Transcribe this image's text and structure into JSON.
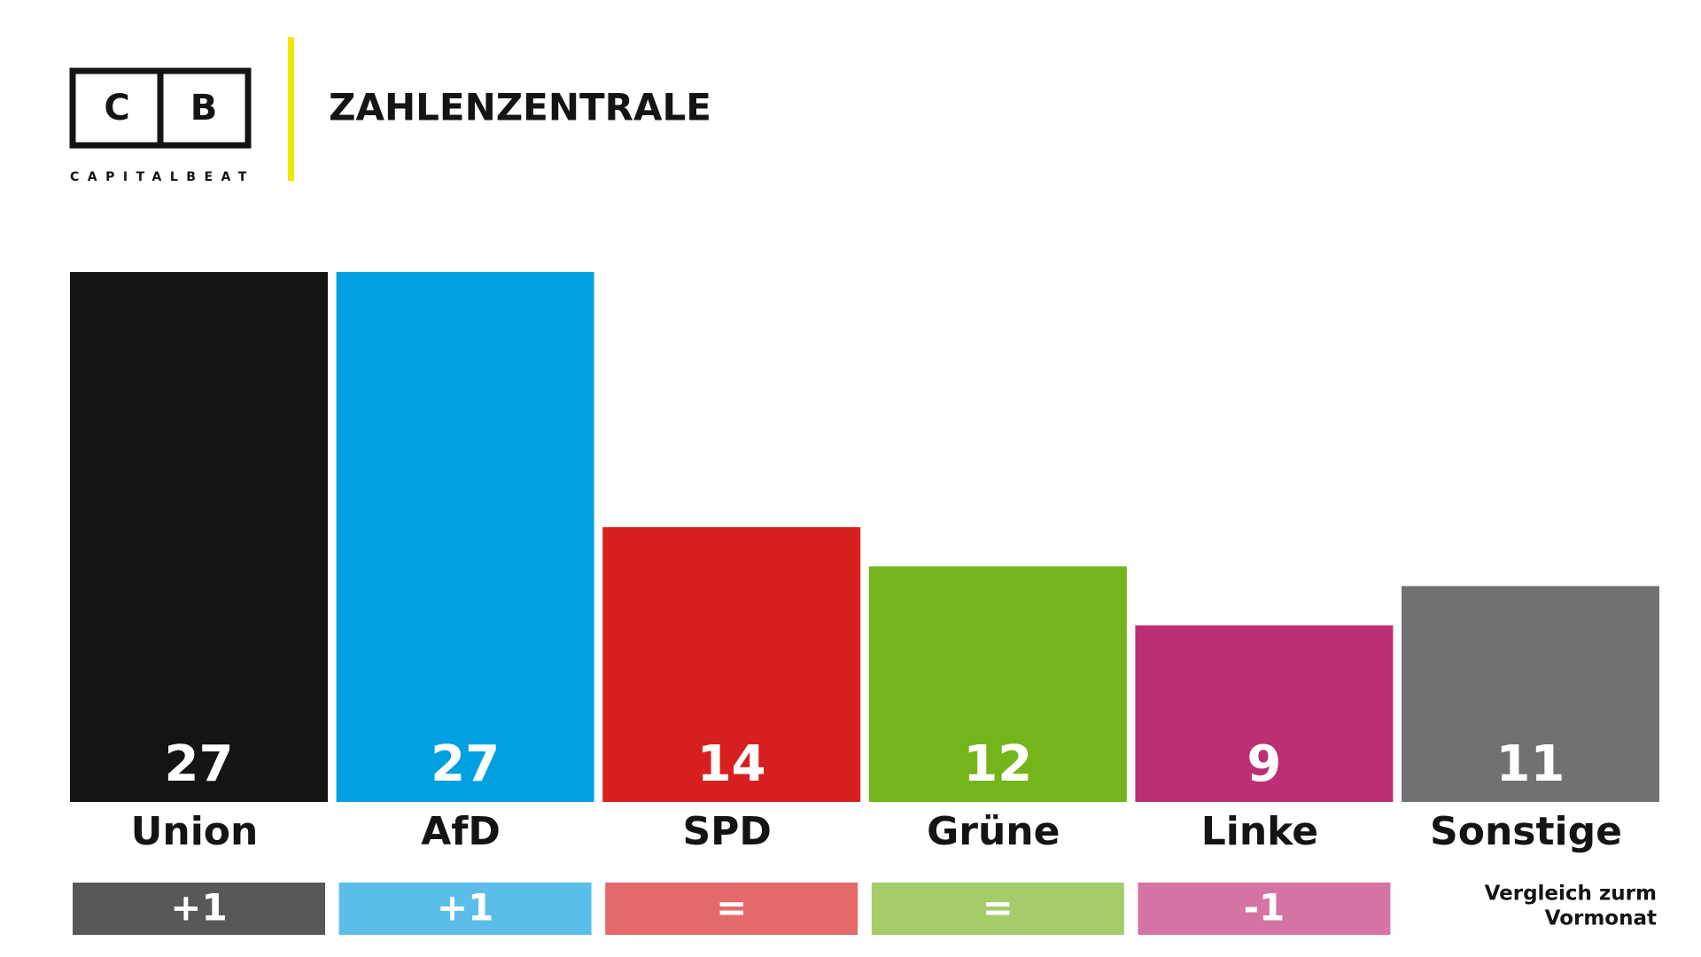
{
  "logo": {
    "letters": [
      "C",
      "B"
    ],
    "name": "CAPITALBEAT"
  },
  "title": "ZAHLENZENTRALE",
  "chart_data": {
    "type": "bar",
    "categories": [
      "Union",
      "AfD",
      "SPD",
      "Grüne",
      "Linke",
      "Sonstige"
    ],
    "values": [
      27,
      27,
      14,
      12,
      9,
      11
    ],
    "colors": [
      "#141414",
      "#00a0e0",
      "#d81f20",
      "#74b51b",
      "#bd2f75",
      "#707172"
    ],
    "ylim": [
      0,
      27
    ],
    "changes": [
      "+1",
      "+1",
      "=",
      "=",
      "-1",
      null
    ],
    "change_colors": [
      "#585858",
      "#5bbde9",
      "#e46969",
      "#a5cc6b",
      "#d574a4",
      null
    ],
    "change_note": [
      "Vergleich zurm",
      "Vormonat"
    ]
  }
}
